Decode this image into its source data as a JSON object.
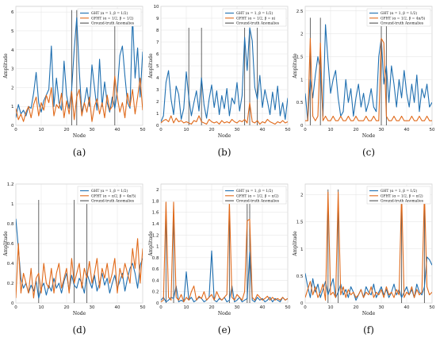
{
  "chart_data": [
    {
      "type": "line",
      "caption": "(a)",
      "xlabel": "Node",
      "ylabel": "Amplitude",
      "xlim": [
        0,
        50
      ],
      "ylim": [
        0,
        6.3
      ],
      "xticks": [
        "0",
        "10",
        "20",
        "30",
        "40",
        "50"
      ],
      "yticks": [
        "0",
        "1",
        "2",
        "3",
        "4",
        "5",
        "6"
      ],
      "grid": true,
      "legend_position": "top-right",
      "anomalies": [
        22,
        24,
        39
      ],
      "anomaly_height": 6.1,
      "series": [
        {
          "name": "GHT (α = 1, β = 1/2)",
          "color": "#1f6fb0",
          "values": [
            0.4,
            1.1,
            0.6,
            0.8,
            0.5,
            1.0,
            0.9,
            1.7,
            2.8,
            1.2,
            0.7,
            1.3,
            1.6,
            1.9,
            4.2,
            1.0,
            2.5,
            1.2,
            0.8,
            3.4,
            1.6,
            0.9,
            1.9,
            4.0,
            5.7,
            2.9,
            0.7,
            1.2,
            2.0,
            1.0,
            3.2,
            2.0,
            0.8,
            3.5,
            1.0,
            2.3,
            1.2,
            0.7,
            1.5,
            0.9,
            1.8,
            3.7,
            4.2,
            2.6,
            1.2,
            0.9,
            5.8,
            2.5,
            4.1,
            1.5,
            3.9
          ]
        },
        {
          "name": "GFHT (α = 1/2, β = 1/2)",
          "color": "#e06a1b",
          "values": [
            0.9,
            0.3,
            0.6,
            0.2,
            0.7,
            1.0,
            0.4,
            1.1,
            1.5,
            0.5,
            1.2,
            0.8,
            1.6,
            1.2,
            2.0,
            0.5,
            1.1,
            0.9,
            1.7,
            0.4,
            1.3,
            0.6,
            1.8,
            0.3,
            1.5,
            1.9,
            0.5,
            1.2,
            0.7,
            1.5,
            0.2,
            1.0,
            1.4,
            0.6,
            1.2,
            0.4,
            1.6,
            0.8,
            1.0,
            2.6,
            1.5,
            0.7,
            1.2,
            0.4,
            1.7,
            1.0,
            1.9,
            0.6,
            1.5,
            2.5,
            0.8
          ]
        },
        {
          "name": "Ground-truth Anomalies",
          "color": "#555555",
          "values": []
        }
      ]
    },
    {
      "type": "line",
      "caption": "(b)",
      "xlabel": "Node",
      "ylabel": "Amplitude",
      "xlim": [
        0,
        50
      ],
      "ylim": [
        0,
        10
      ],
      "xticks": [
        "0",
        "10",
        "20",
        "30",
        "40",
        "50"
      ],
      "yticks": [
        "0",
        "1",
        "2",
        "3",
        "4",
        "5",
        "6",
        "7",
        "8",
        "9",
        "10"
      ],
      "grid": true,
      "legend_position": "top-right",
      "anomalies": [
        11,
        16,
        33,
        35,
        38
      ],
      "anomaly_height": 8.2,
      "series": [
        {
          "name": "GHT (α = 1, β = 1/2)",
          "color": "#1f6fb0",
          "values": [
            0.3,
            0.8,
            3.6,
            4.6,
            2.2,
            0.9,
            3.3,
            2.6,
            0.5,
            1.4,
            4.5,
            2.3,
            0.8,
            1.9,
            2.9,
            1.2,
            4.0,
            1.7,
            0.6,
            2.2,
            3.4,
            1.5,
            2.9,
            0.9,
            2.5,
            1.4,
            3.1,
            0.8,
            2.3,
            1.8,
            3.6,
            1.2,
            2.5,
            7.4,
            4.6,
            8.2,
            7.1,
            3.2,
            2.2,
            4.2,
            1.5,
            3.0,
            2.0,
            0.9,
            2.8,
            1.3,
            3.3,
            0.8,
            1.9,
            0.5,
            2.3
          ]
        },
        {
          "name": "GFHT (α = 1/2, β = π)",
          "color": "#e06a1b",
          "values": [
            0.2,
            0.4,
            0.5,
            0.3,
            0.8,
            0.2,
            0.6,
            0.3,
            0.4,
            0.2,
            0.3,
            0.2,
            0.1,
            0.4,
            0.3,
            0.8,
            0.3,
            0.2,
            0.1,
            0.5,
            0.3,
            0.2,
            0.3,
            0.1,
            0.4,
            0.2,
            0.3,
            0.2,
            0.5,
            0.3,
            0.2,
            0.4,
            0.3,
            0.5,
            0.2,
            1.9,
            0.3,
            0.2,
            0.4,
            0.1,
            0.3,
            0.2,
            0.5,
            0.3,
            0.2,
            0.1,
            0.3,
            0.2,
            0.4,
            0.2,
            0.3
          ]
        },
        {
          "name": "Ground-truth Anomalies",
          "color": "#555555",
          "values": []
        }
      ]
    },
    {
      "type": "line",
      "caption": "(c)",
      "xlabel": "Node",
      "ylabel": "Amplitude",
      "xlim": [
        0,
        50
      ],
      "ylim": [
        0,
        2.6
      ],
      "xticks": [
        "0",
        "10",
        "20",
        "30",
        "40",
        "50"
      ],
      "yticks": [
        "0",
        "0.5",
        "1",
        "1.5",
        "2",
        "2.5"
      ],
      "grid": true,
      "legend_position": "top-right",
      "anomalies": [
        2,
        6,
        30,
        32
      ],
      "anomaly_height": 2.35,
      "series": [
        {
          "name": "GHT (α = 1, β = 1/2)",
          "color": "#1f6fb0",
          "values": [
            0.7,
            0.1,
            1.0,
            0.6,
            1.1,
            1.5,
            1.2,
            0.2,
            2.2,
            1.4,
            0.7,
            1.0,
            1.2,
            0.6,
            0.2,
            0.3,
            1.0,
            0.5,
            0.8,
            0.2,
            0.6,
            0.9,
            0.4,
            0.7,
            0.3,
            0.5,
            0.8,
            0.4,
            0.3,
            1.5,
            1.9,
            0.9,
            1.3,
            0.5,
            1.3,
            0.9,
            0.4,
            1.0,
            0.6,
            1.2,
            0.7,
            0.4,
            0.9,
            0.5,
            1.1,
            0.3,
            0.8,
            0.6,
            0.9,
            0.4,
            0.5
          ]
        },
        {
          "name": "GFHT (α = 1/2, β = 4π/5)",
          "color": "#e06a1b",
          "values": [
            0.1,
            0.1,
            1.9,
            0.2,
            0.1,
            0.2,
            1.8,
            0.1,
            0.2,
            0.1,
            0.1,
            0.2,
            0.1,
            0.1,
            0.2,
            0.1,
            0.1,
            0.2,
            0.1,
            0.1,
            0.2,
            0.1,
            0.1,
            0.1,
            0.2,
            0.1,
            0.1,
            0.2,
            0.1,
            0.1,
            1.9,
            1.8,
            0.2,
            0.1,
            0.1,
            0.2,
            0.1,
            0.1,
            0.2,
            0.1,
            0.1,
            0.1,
            0.2,
            0.1,
            0.1,
            0.2,
            0.1,
            0.1,
            0.2,
            0.1,
            0.1
          ]
        },
        {
          "name": "Ground-truth Anomalies",
          "color": "#555555",
          "values": []
        }
      ]
    },
    {
      "type": "line",
      "caption": "(d)",
      "xlabel": "Node",
      "ylabel": "Amplitude",
      "xlim": [
        0,
        50
      ],
      "ylim": [
        0,
        1.2
      ],
      "xticks": [
        "0",
        "10",
        "20",
        "30",
        "40",
        "50"
      ],
      "yticks": [
        "0",
        "0.2",
        "0.4",
        "0.6",
        "0.8",
        "1",
        "1.2"
      ],
      "grid": true,
      "legend_position": "top-right",
      "anomalies": [
        9,
        23,
        28
      ],
      "anomaly_height": 1.04,
      "series": [
        {
          "name": "GHT (α = 1, β = 1/2)",
          "color": "#1f6fb0",
          "values": [
            0.85,
            0.55,
            0.25,
            0.15,
            0.2,
            0.1,
            0.18,
            0.12,
            0.22,
            0.05,
            0.15,
            0.2,
            0.08,
            0.18,
            0.12,
            0.25,
            0.15,
            0.2,
            0.1,
            0.22,
            0.3,
            0.12,
            0.28,
            0.18,
            0.15,
            0.25,
            0.2,
            0.1,
            0.3,
            0.22,
            0.15,
            0.28,
            0.12,
            0.2,
            0.3,
            0.18,
            0.25,
            0.1,
            0.2,
            0.28,
            0.15,
            0.22,
            0.3,
            0.12,
            0.25,
            0.35,
            0.4,
            0.3,
            0.15,
            0.38,
            0.45
          ]
        },
        {
          "name": "GFHT (α = π/2, β = 4π/5)",
          "color": "#e06a1b",
          "values": [
            0.05,
            0.6,
            0.1,
            0.3,
            0.2,
            0.1,
            0.35,
            0.05,
            0.25,
            0.3,
            0.1,
            0.4,
            0.2,
            0.15,
            0.35,
            0.1,
            0.3,
            0.4,
            0.15,
            0.25,
            0.35,
            0.1,
            0.45,
            0.2,
            0.3,
            0.4,
            0.15,
            0.35,
            0.25,
            0.42,
            0.2,
            0.3,
            0.45,
            0.15,
            0.35,
            0.25,
            0.4,
            0.2,
            0.3,
            0.45,
            0.1,
            0.35,
            0.25,
            0.4,
            0.3,
            0.2,
            0.55,
            0.35,
            0.65,
            0.2,
            0.55
          ]
        },
        {
          "name": "Ground-truth Anomalies",
          "color": "#555555",
          "values": []
        }
      ]
    },
    {
      "type": "line",
      "caption": "(e)",
      "xlabel": "Node",
      "ylabel": "Amplitude",
      "xlim": [
        0,
        50
      ],
      "ylim": [
        0,
        2.1
      ],
      "xticks": [
        "0",
        "10",
        "20",
        "30",
        "40",
        "50"
      ],
      "yticks": [
        "0",
        "0.2",
        "0.4",
        "0.6",
        "0.8",
        "1",
        "1.2",
        "1.4",
        "1.6",
        "1.8",
        "2"
      ],
      "grid": true,
      "legend_position": "top-right",
      "anomalies": [
        2,
        5,
        27,
        34,
        35
      ],
      "anomaly_height": 1.78,
      "series": [
        {
          "name": "GHT (α = 1, β = 1/2)",
          "color": "#1f6fb0",
          "values": [
            0.05,
            0.1,
            0.02,
            0.05,
            0.1,
            0.08,
            0.3,
            0.02,
            0.05,
            0.02,
            0.55,
            0.05,
            0.1,
            0.02,
            0.05,
            0.1,
            0.08,
            0.02,
            0.05,
            0.1,
            0.92,
            0.05,
            0.02,
            0.08,
            0.05,
            0.1,
            0.02,
            0.05,
            0.3,
            0.02,
            0.05,
            0.1,
            0.02,
            0.05,
            0.08,
            0.9,
            0.05,
            0.02,
            0.1,
            0.05,
            0.08,
            0.02,
            0.05,
            0.1,
            0.02,
            0.08,
            0.05,
            0.02,
            0.1,
            0.05,
            0.08
          ]
        },
        {
          "name": "GFHT (α = 1/2, β = π/2)",
          "color": "#e06a1b",
          "values": [
            0.02,
            0.05,
            1.78,
            0.1,
            0.05,
            1.78,
            0.1,
            0.05,
            0.15,
            0.02,
            0.1,
            0.05,
            0.2,
            0.3,
            0.05,
            0.12,
            0.08,
            0.2,
            0.05,
            0.1,
            0.15,
            0.05,
            0.2,
            0.1,
            0.05,
            0.1,
            0.15,
            1.78,
            0.1,
            0.05,
            0.15,
            0.1,
            0.05,
            0.2,
            1.45,
            1.48,
            0.1,
            0.05,
            0.15,
            0.1,
            0.05,
            0.08,
            0.12,
            0.05,
            0.1,
            0.05,
            0.08,
            0.05,
            0.1,
            0.05,
            0.08
          ]
        },
        {
          "name": "Ground-truth Anomalies",
          "color": "#555555",
          "values": []
        }
      ]
    },
    {
      "type": "line",
      "caption": "(f)",
      "xlabel": "Node",
      "ylabel": "Amplitude",
      "xlim": [
        0,
        50
      ],
      "ylim": [
        0,
        2.2
      ],
      "xticks": [
        "0",
        "10",
        "20",
        "30",
        "40",
        "50"
      ],
      "yticks": [
        "0",
        "0.5",
        "1",
        "1.5",
        "2"
      ],
      "grid": true,
      "legend_position": "top-right",
      "anomalies": [
        9,
        13,
        38,
        47
      ],
      "anomaly_height": 2.1,
      "series": [
        {
          "name": "GHT (α = 1, β = 1/2)",
          "color": "#1f6fb0",
          "values": [
            0.55,
            0.3,
            0.1,
            0.45,
            0.2,
            0.35,
            0.1,
            0.25,
            0.4,
            0.15,
            0.3,
            0.45,
            0.1,
            0.2,
            0.35,
            0.15,
            0.25,
            0.1,
            0.3,
            0.2,
            0.05,
            0.15,
            0.25,
            0.1,
            0.3,
            0.2,
            0.15,
            0.35,
            0.1,
            0.2,
            0.3,
            0.15,
            0.25,
            0.1,
            0.2,
            0.35,
            0.15,
            0.25,
            0.1,
            0.2,
            0.3,
            0.15,
            0.25,
            0.1,
            0.35,
            0.2,
            0.15,
            0.3,
            0.85,
            0.8,
            0.7
          ]
        },
        {
          "name": "GFHT (α = 1/2, β = π/2)",
          "color": "#e06a1b",
          "values": [
            0.1,
            0.25,
            0.4,
            0.15,
            0.3,
            0.1,
            0.2,
            0.35,
            0.05,
            2.05,
            0.15,
            0.2,
            0.1,
            2.05,
            0.15,
            0.3,
            0.1,
            0.25,
            0.15,
            0.2,
            0.1,
            0.15,
            0.25,
            0.1,
            0.2,
            0.15,
            0.3,
            0.1,
            0.2,
            0.15,
            0.25,
            0.1,
            0.3,
            0.15,
            0.2,
            0.1,
            0.25,
            0.15,
            2.05,
            0.1,
            0.2,
            0.15,
            0.3,
            0.1,
            0.25,
            0.15,
            0.2,
            2.05,
            0.3,
            0.15,
            0.2
          ]
        },
        {
          "name": "Ground-truth Anomalies",
          "color": "#555555",
          "values": []
        }
      ]
    }
  ]
}
